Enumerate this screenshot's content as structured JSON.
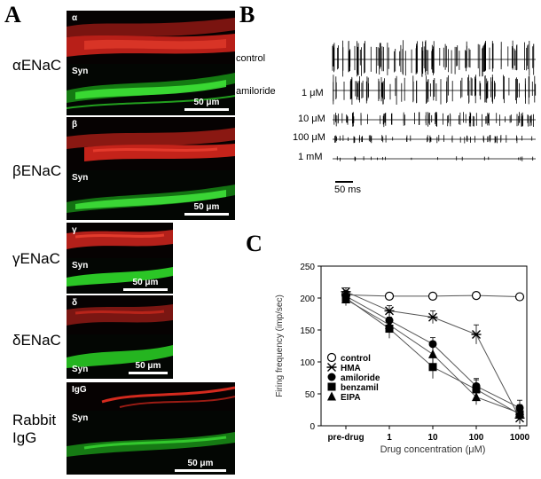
{
  "panels": {
    "a_letter": "A",
    "b_letter": "B",
    "c_letter": "C"
  },
  "panel_a": {
    "rows": [
      {
        "label": "αENaC",
        "top_label": "α",
        "bottom_label": "Syn",
        "scale": "50 μm"
      },
      {
        "label": "βENaC",
        "top_label": "β",
        "bottom_label": "Syn",
        "scale": "50 μm"
      },
      {
        "label": "γENaC",
        "top_label": "γ",
        "bottom_label": "Syn",
        "scale": "50 μm"
      },
      {
        "label": "δENaC",
        "top_label": "δ",
        "bottom_label": "Syn",
        "scale": "50 μm"
      },
      {
        "label": "Rabbit IgG",
        "top_label": "IgG",
        "bottom_label": "Syn",
        "scale": "50 μm"
      }
    ],
    "colors": {
      "red_channel": "#d42a1e",
      "green_channel": "#2fd22a",
      "background": "#050505"
    }
  },
  "panel_b": {
    "control_label": "control",
    "amiloride_label": "amiloride",
    "concentrations": [
      "1 μM",
      "10 μM",
      "100 μM",
      "1 mM"
    ],
    "time_scale": "50 ms"
  },
  "chart_data": {
    "type": "line",
    "ylabel": "Firing frequency (imp/sec)",
    "xlabel": "Drug concentration (μM)",
    "categories": [
      "pre-drug",
      "1",
      "10",
      "100",
      "1000"
    ],
    "ylim": [
      0,
      250
    ],
    "yticks": [
      0,
      50,
      100,
      150,
      200,
      250
    ],
    "grid": false,
    "legend_position": "bottom-left",
    "series": [
      {
        "name": "control",
        "marker": "open-circle",
        "values": [
          205,
          203,
          203,
          204,
          202
        ],
        "errors": [
          6,
          4,
          4,
          4,
          4
        ]
      },
      {
        "name": "HMA",
        "marker": "x",
        "values": [
          210,
          180,
          170,
          143,
          12
        ],
        "errors": [
          6,
          8,
          10,
          15,
          8
        ]
      },
      {
        "name": "amiloride",
        "marker": "filled-circle",
        "values": [
          203,
          165,
          128,
          62,
          28
        ],
        "errors": [
          8,
          12,
          10,
          12,
          12
        ]
      },
      {
        "name": "benzamil",
        "marker": "filled-square",
        "values": [
          200,
          152,
          92,
          57,
          18
        ],
        "errors": [
          8,
          15,
          18,
          15,
          15
        ]
      },
      {
        "name": "EIPA",
        "marker": "filled-triangle",
        "values": [
          198,
          158,
          112,
          45,
          20
        ],
        "errors": [
          10,
          12,
          15,
          12,
          10
        ]
      }
    ]
  }
}
